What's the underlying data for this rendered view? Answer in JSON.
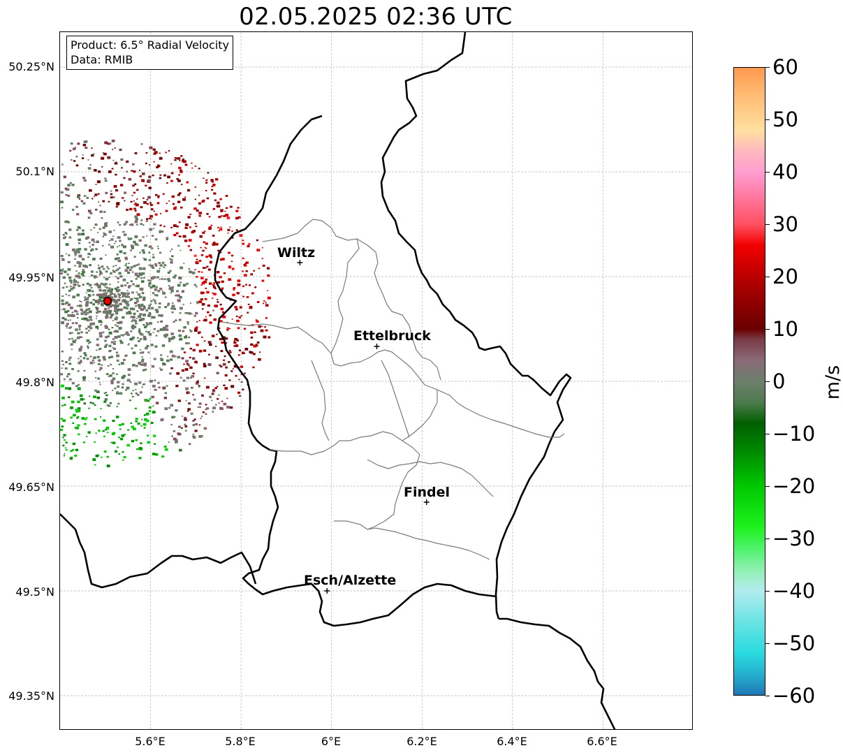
{
  "title": "02.05.2025 02:36 UTC",
  "info": {
    "product": "Product: 6.5° Radial Velocity",
    "data": "Data: RMIB"
  },
  "map": {
    "lon_range": [
      5.4,
      6.8
    ],
    "lat_range": [
      49.3,
      50.3
    ],
    "lat_ticks": [
      "50.25°N",
      "50.1°N",
      "49.95°N",
      "49.8°N",
      "49.65°N",
      "49.5°N",
      "49.35°N"
    ],
    "lon_ticks": [
      "5.6°E",
      "5.8°E",
      "6°E",
      "6.2°E",
      "6.4°E",
      "6.6°E"
    ],
    "grid": true,
    "radar_site": {
      "lon": 5.505,
      "lat": 49.915
    },
    "cities": [
      {
        "name": "Wiltz",
        "lon": 5.93,
        "lat": 49.97
      },
      {
        "name": "Ettelbruck",
        "lon": 6.1,
        "lat": 49.85
      },
      {
        "name": "Findel",
        "lon": 6.21,
        "lat": 49.627
      },
      {
        "name": "Esch/Alzette",
        "lon": 5.99,
        "lat": 49.5
      }
    ]
  },
  "colorbar": {
    "unit": "m/s",
    "min": -60,
    "max": 60,
    "ticks": [
      "60",
      "50",
      "40",
      "30",
      "20",
      "10",
      "0",
      "−10",
      "−20",
      "−30",
      "−40",
      "−50",
      "−60"
    ],
    "stops": [
      {
        "v": -60,
        "c": "#1f78b4"
      },
      {
        "v": -56,
        "c": "#24b0cf"
      },
      {
        "v": -52,
        "c": "#2adbe0"
      },
      {
        "v": -46,
        "c": "#6ae3e3"
      },
      {
        "v": -40,
        "c": "#b3ecef"
      },
      {
        "v": -36,
        "c": "#8ff0b0"
      },
      {
        "v": -32,
        "c": "#4ff26c"
      },
      {
        "v": -28,
        "c": "#1ef21e"
      },
      {
        "v": -20,
        "c": "#00c800"
      },
      {
        "v": -14,
        "c": "#008f00"
      },
      {
        "v": -8,
        "c": "#005f00"
      },
      {
        "v": -4,
        "c": "#4f7a4f"
      },
      {
        "v": 0,
        "c": "#6c7f6c"
      },
      {
        "v": 4,
        "c": "#8a6a78"
      },
      {
        "v": 8,
        "c": "#7a3c48"
      },
      {
        "v": 10,
        "c": "#6a0000"
      },
      {
        "v": 18,
        "c": "#a80000"
      },
      {
        "v": 26,
        "c": "#f20000"
      },
      {
        "v": 30,
        "c": "#ff5060"
      },
      {
        "v": 36,
        "c": "#ff7ea8"
      },
      {
        "v": 40,
        "c": "#ff9ed0"
      },
      {
        "v": 44,
        "c": "#ffb8c0"
      },
      {
        "v": 48,
        "c": "#ffe0a0"
      },
      {
        "v": 54,
        "c": "#ffc078"
      },
      {
        "v": 60,
        "c": "#ff9a50"
      }
    ]
  }
}
